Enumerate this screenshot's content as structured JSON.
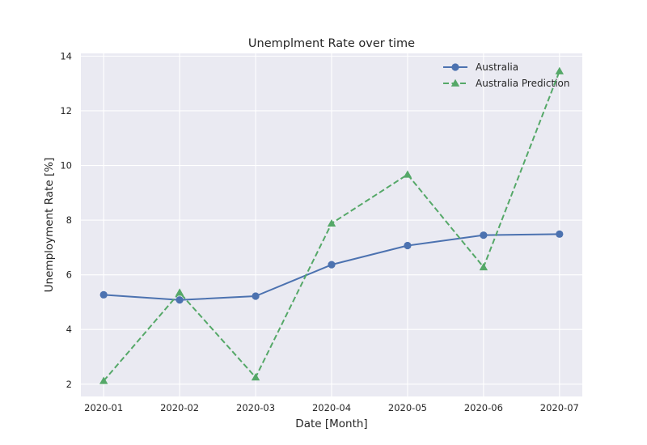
{
  "chart_data": {
    "type": "line",
    "title": "Unemplment Rate over time",
    "xlabel": "Date [Month]",
    "ylabel": "Unemployment Rate [%]",
    "x": [
      "2020-01",
      "2020-02",
      "2020-03",
      "2020-04",
      "2020-05",
      "2020-06",
      "2020-07"
    ],
    "yticks": [
      2,
      4,
      6,
      8,
      10,
      12,
      14
    ],
    "ylim": [
      1.55,
      14.1
    ],
    "grid": true,
    "legend_position": "top-right",
    "series": [
      {
        "name": "Australia",
        "values": [
          5.27,
          5.08,
          5.22,
          6.37,
          7.07,
          7.45,
          7.49
        ],
        "color": "#4c72b0",
        "marker": "circle",
        "line_style": "solid"
      },
      {
        "name": "Australia Prediction",
        "values": [
          2.12,
          5.35,
          2.25,
          7.88,
          9.67,
          6.28,
          13.45
        ],
        "color": "#55a868",
        "marker": "triangle",
        "line_style": "dashed"
      }
    ]
  }
}
